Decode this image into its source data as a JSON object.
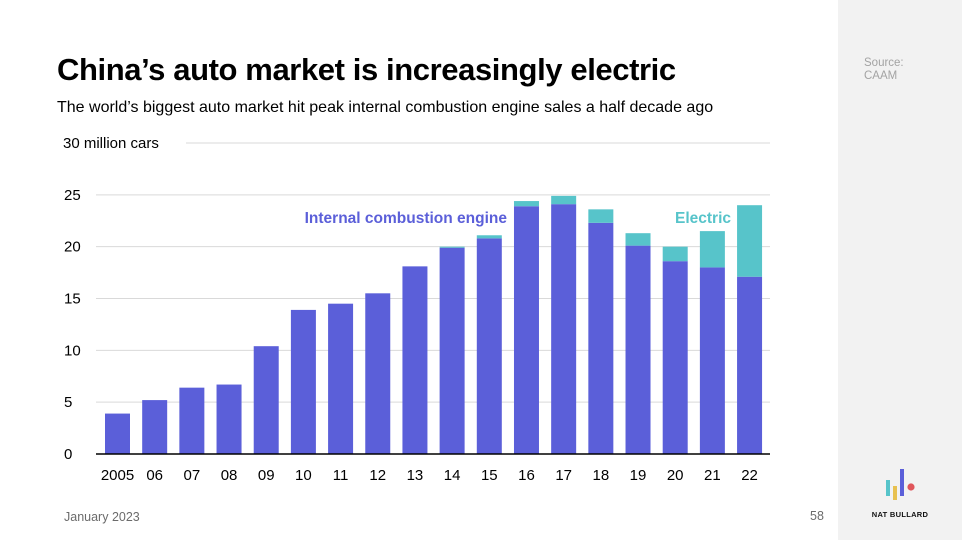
{
  "slide": {
    "title": "China’s auto market is increasingly electric",
    "subtitle": "The world’s biggest auto market hit peak internal combustion engine sales a half decade ago",
    "source_label": "Source:",
    "source_name": "CAAM",
    "date": "January 2023",
    "page_number": "58",
    "brand": "NAT BULLARD"
  },
  "colors": {
    "ice": "#5b5fd9",
    "electric": "#57c4ca",
    "gridline": "#d9d9d9",
    "axis": "#000000"
  },
  "chart_data": {
    "type": "bar",
    "stacked": true,
    "categories": [
      "2005",
      "06",
      "07",
      "08",
      "09",
      "10",
      "11",
      "12",
      "13",
      "14",
      "15",
      "16",
      "17",
      "18",
      "19",
      "20",
      "21",
      "22"
    ],
    "series": [
      {
        "name": "Internal combustion engine",
        "values": [
          3.9,
          5.2,
          6.4,
          6.7,
          10.4,
          13.9,
          14.5,
          15.5,
          18.1,
          19.9,
          20.8,
          23.9,
          24.1,
          22.3,
          20.1,
          18.6,
          18.0,
          17.1
        ]
      },
      {
        "name": "Electric",
        "values": [
          0,
          0,
          0,
          0,
          0,
          0,
          0,
          0,
          0,
          0.1,
          0.3,
          0.5,
          0.8,
          1.3,
          1.2,
          1.4,
          3.5,
          6.9
        ]
      }
    ],
    "ylim": [
      0,
      30
    ],
    "yticks": [
      0,
      5,
      10,
      15,
      20,
      25,
      30
    ],
    "ytick_labels": [
      "0",
      "5",
      "10",
      "15",
      "20",
      "25",
      "30 million cars"
    ],
    "grid": true,
    "legend": "inline labels above bars"
  }
}
